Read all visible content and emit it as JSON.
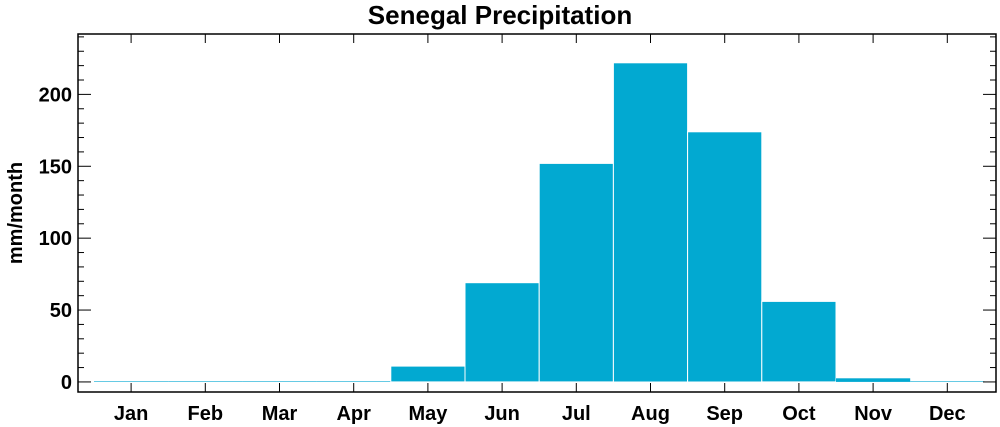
{
  "chart_data": {
    "type": "bar",
    "title": "Senegal Precipitation",
    "xlabel": "",
    "ylabel": "mm/month",
    "categories": [
      "Jan",
      "Feb",
      "Mar",
      "Apr",
      "May",
      "Jun",
      "Jul",
      "Aug",
      "Sep",
      "Oct",
      "Nov",
      "Dec"
    ],
    "values": [
      0,
      0.3,
      0,
      0.3,
      11,
      69,
      152,
      222,
      174,
      56,
      2.5,
      0
    ],
    "ylim": [
      -7,
      242
    ],
    "yticks": [
      0,
      50,
      100,
      150,
      200
    ],
    "bar_color": "#02a9d1",
    "grid": false
  }
}
